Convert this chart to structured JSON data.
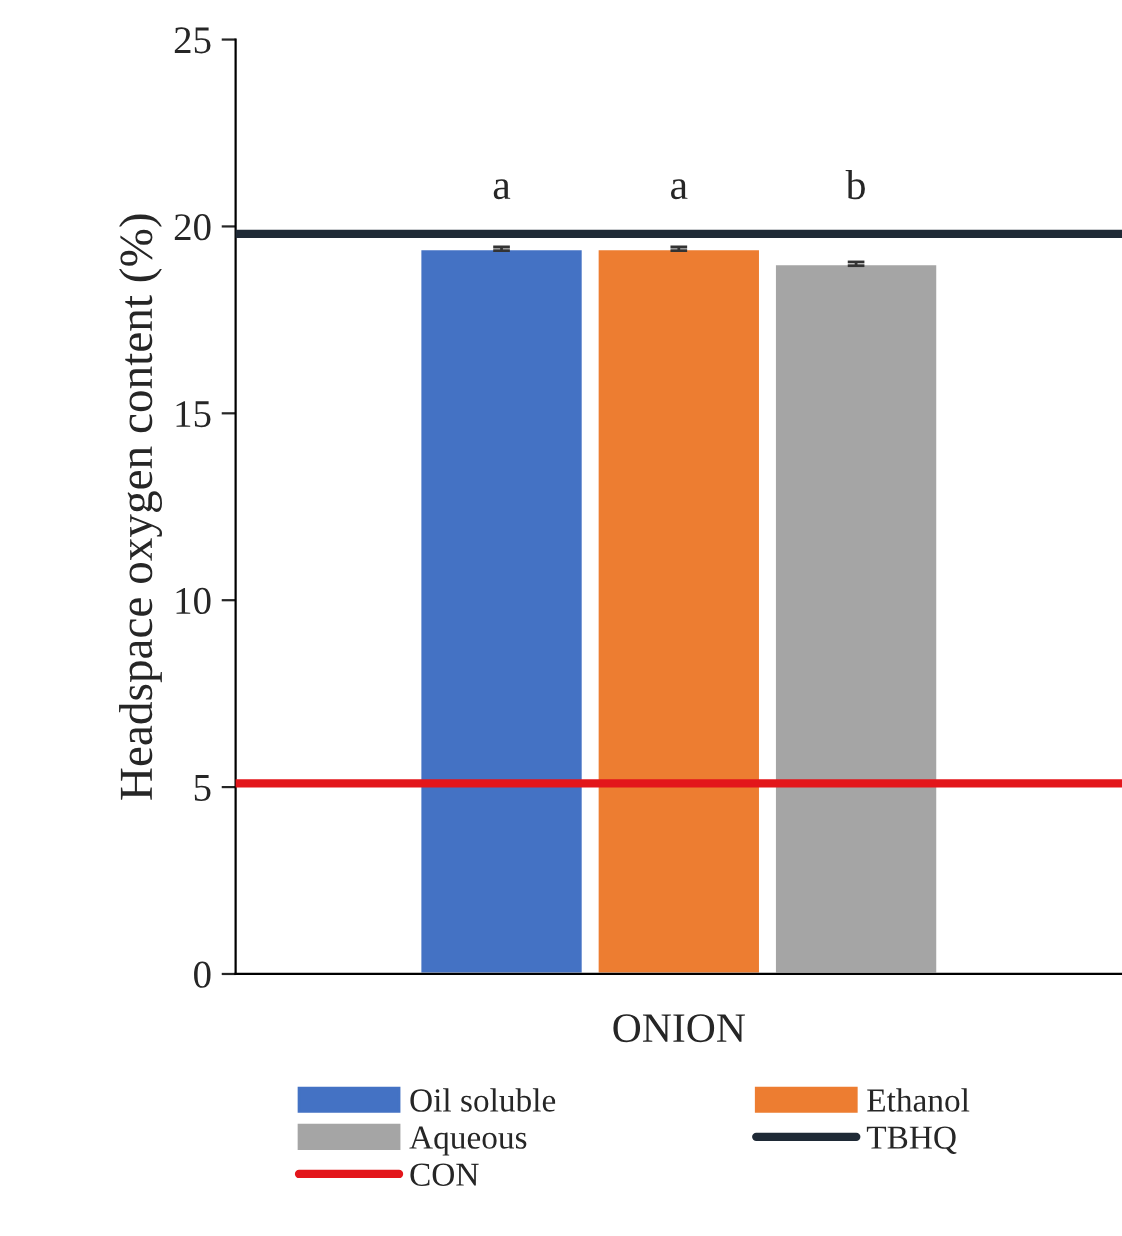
{
  "chart_data": {
    "type": "bar",
    "ylabel": "Headspace oxygen content (%)",
    "categories": [
      "ONION"
    ],
    "series": [
      {
        "name": "Oil soluble",
        "color": "#4472c4",
        "values": [
          19.4
        ],
        "errors": [
          0.05
        ]
      },
      {
        "name": "Ethanol",
        "color": "#ed7d31",
        "values": [
          19.4
        ],
        "errors": [
          0.05
        ]
      },
      {
        "name": "Aqueous",
        "color": "#a5a5a5",
        "values": [
          19.0
        ],
        "errors": [
          0.05
        ]
      }
    ],
    "ref_lines": [
      {
        "axis": "y",
        "value": 19.8,
        "label": "TBHQ",
        "color": "#1f2a36"
      },
      {
        "axis": "y",
        "value": 5.1,
        "label": "CON",
        "color": "#e3161b"
      }
    ],
    "annotations": [
      "a",
      "a",
      "b"
    ],
    "ylim": [
      0,
      25
    ],
    "yticks": [
      0,
      5,
      10,
      15,
      20,
      25
    ],
    "grid": false,
    "legend": "bottom"
  }
}
